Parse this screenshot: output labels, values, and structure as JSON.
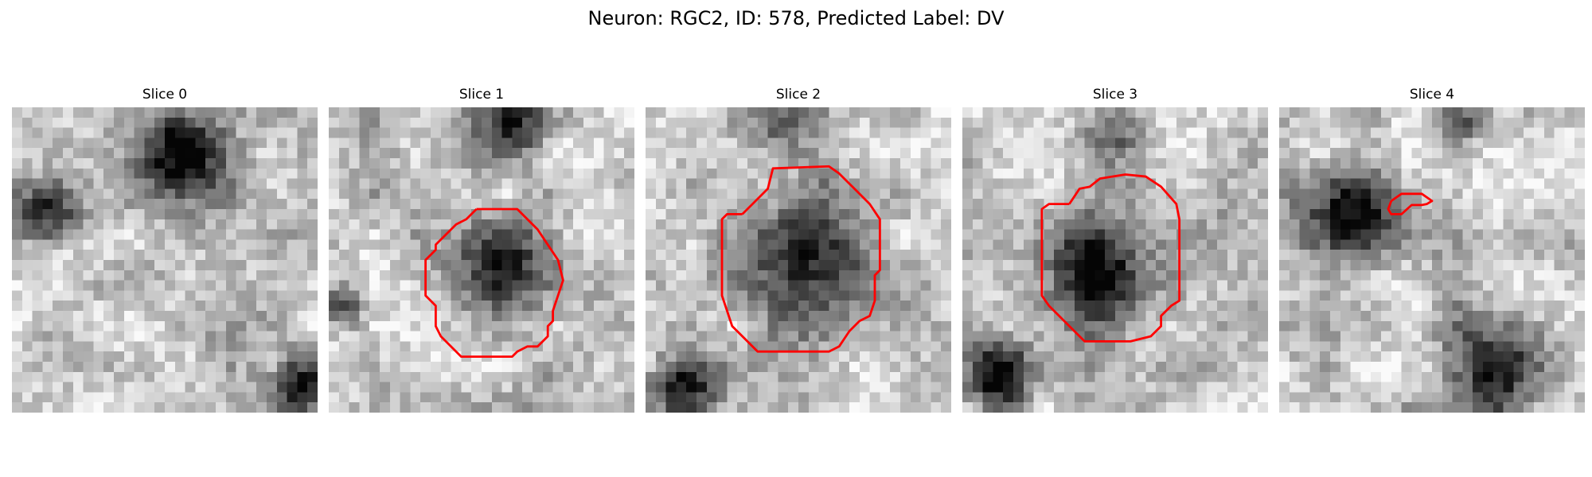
{
  "figure": {
    "title": "Neuron: RGC2, ID: 578, Predicted Label: DV"
  },
  "panels": [
    {
      "title": "Slice 0",
      "has_contour": false,
      "seed": 11,
      "blobs": [
        [
          0.55,
          0.15,
          0.2,
          0.85
        ],
        [
          0.12,
          0.35,
          0.13,
          0.6
        ],
        [
          0.95,
          0.92,
          0.12,
          0.7
        ]
      ]
    },
    {
      "title": "Slice 1",
      "has_contour": true,
      "seed": 23,
      "blobs": [
        [
          0.55,
          0.52,
          0.2,
          0.75
        ],
        [
          0.6,
          0.05,
          0.15,
          0.6
        ],
        [
          0.05,
          0.65,
          0.1,
          0.6
        ]
      ]
    },
    {
      "title": "Slice 2",
      "has_contour": true,
      "seed": 37,
      "blobs": [
        [
          0.52,
          0.5,
          0.25,
          0.75
        ],
        [
          0.45,
          0.05,
          0.12,
          0.5
        ],
        [
          0.12,
          0.92,
          0.14,
          0.85
        ]
      ]
    },
    {
      "title": "Slice 3",
      "has_contour": true,
      "seed": 41,
      "blobs": [
        [
          0.45,
          0.55,
          0.23,
          0.75
        ],
        [
          0.5,
          0.08,
          0.12,
          0.4
        ],
        [
          0.12,
          0.88,
          0.13,
          0.75
        ]
      ]
    },
    {
      "title": "Slice 4",
      "has_contour": true,
      "seed": 53,
      "blobs": [
        [
          0.22,
          0.35,
          0.19,
          0.8
        ],
        [
          0.7,
          0.85,
          0.2,
          0.75
        ],
        [
          0.6,
          0.05,
          0.1,
          0.4
        ]
      ]
    }
  ],
  "colors": {
    "contour": "#ff0000"
  }
}
